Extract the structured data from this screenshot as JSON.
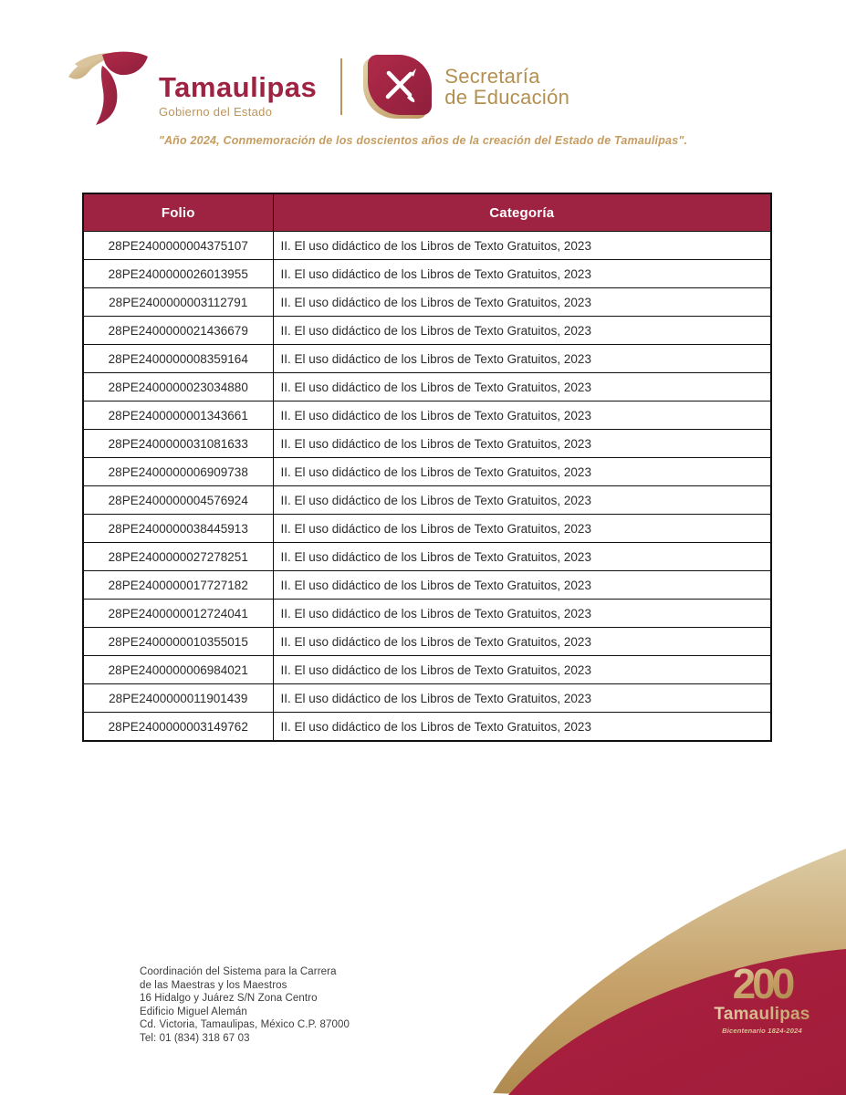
{
  "header": {
    "brand": {
      "state_name": "Tamaulipas",
      "state_tagline": "Gobierno del Estado",
      "agency_line1": "Secretaría",
      "agency_line2": "de Educación"
    },
    "quote": "\"Año 2024, Conmemoración de los doscientos años de la creación del Estado de Tamaulipas\"."
  },
  "table": {
    "columns": {
      "folio": "Folio",
      "categoria": "Categoría"
    },
    "rows": [
      {
        "folio": "28PE2400000004375107",
        "categoria": "II. El uso didáctico de los Libros de Texto Gratuitos, 2023"
      },
      {
        "folio": "28PE2400000026013955",
        "categoria": "II. El uso didáctico de los Libros de Texto Gratuitos, 2023"
      },
      {
        "folio": "28PE2400000003112791",
        "categoria": "II. El uso didáctico de los Libros de Texto Gratuitos, 2023"
      },
      {
        "folio": "28PE2400000021436679",
        "categoria": "II. El uso didáctico de los Libros de Texto Gratuitos, 2023"
      },
      {
        "folio": "28PE2400000008359164",
        "categoria": "II. El uso didáctico de los Libros de Texto Gratuitos, 2023"
      },
      {
        "folio": "28PE2400000023034880",
        "categoria": "II. El uso didáctico de los Libros de Texto Gratuitos, 2023"
      },
      {
        "folio": "28PE2400000001343661",
        "categoria": "II. El uso didáctico de los Libros de Texto Gratuitos, 2023"
      },
      {
        "folio": "28PE2400000031081633",
        "categoria": "II. El uso didáctico de los Libros de Texto Gratuitos, 2023"
      },
      {
        "folio": "28PE2400000006909738",
        "categoria": "II. El uso didáctico de los Libros de Texto Gratuitos, 2023"
      },
      {
        "folio": "28PE2400000004576924",
        "categoria": "II. El uso didáctico de los Libros de Texto Gratuitos, 2023"
      },
      {
        "folio": "28PE2400000038445913",
        "categoria": "II. El uso didáctico de los Libros de Texto Gratuitos, 2023"
      },
      {
        "folio": "28PE2400000027278251",
        "categoria": "II. El uso didáctico de los Libros de Texto Gratuitos, 2023"
      },
      {
        "folio": "28PE2400000017727182",
        "categoria": "II. El uso didáctico de los Libros de Texto Gratuitos, 2023"
      },
      {
        "folio": "28PE2400000012724041",
        "categoria": "II. El uso didáctico de los Libros de Texto Gratuitos, 2023"
      },
      {
        "folio": "28PE2400000010355015",
        "categoria": "II. El uso didáctico de los Libros de Texto Gratuitos, 2023"
      },
      {
        "folio": "28PE2400000006984021",
        "categoria": "II. El uso didáctico de los Libros de Texto Gratuitos, 2023"
      },
      {
        "folio": "28PE2400000011901439",
        "categoria": "II. El uso didáctico de los Libros de Texto Gratuitos, 2023"
      },
      {
        "folio": "28PE2400000003149762",
        "categoria": "II. El uso didáctico de los Libros de Texto Gratuitos, 2023"
      }
    ]
  },
  "footer": {
    "address_lines": [
      "Coordinación del Sistema para la Carrera",
      "de las Maestras y los Maestros",
      "16 Hidalgo y Juárez S/N Zona Centro",
      "Edificio Miguel Alemán",
      "Cd. Victoria, Tamaulipas, México C.P. 87000",
      "Tel: 01 (834) 318 67 03"
    ],
    "bicentennial": {
      "number": "200",
      "name": "Tamaulipas",
      "tagline": "Bicentenario 1824-2024"
    }
  },
  "colors": {
    "maroon": "#9E2241",
    "swoosh_maroon": "#A71E3C",
    "gold": "#BC955C",
    "quote_gold": "#C69C5F"
  }
}
